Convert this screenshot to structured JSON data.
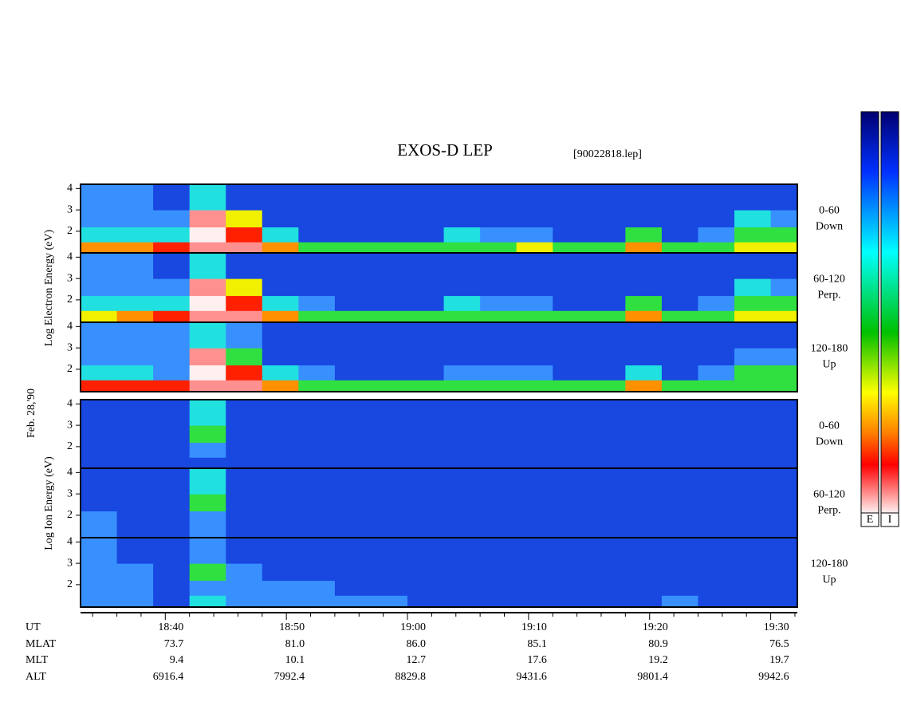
{
  "chart_data": {
    "type": "heatmap",
    "title": "EXOS-D LEP",
    "subtitle": "[90022818.lep]",
    "date": "Feb. 28,'90",
    "xlim": [
      1113,
      1172.2
    ],
    "xticks": [
      {
        "value": 1120,
        "label": "18:40"
      },
      {
        "value": 1130,
        "label": "18:50"
      },
      {
        "value": 1140,
        "label": "19:00"
      },
      {
        "value": 1150,
        "label": "19:10"
      },
      {
        "value": 1160,
        "label": "19:20"
      },
      {
        "value": 1170,
        "label": "19:30"
      }
    ],
    "xminorticks": [
      1114,
      1116,
      1118,
      1122,
      1124,
      1126,
      1128,
      1132,
      1134,
      1136,
      1138,
      1142,
      1144,
      1146,
      1148,
      1152,
      1154,
      1156,
      1158,
      1162,
      1164,
      1166,
      1168,
      1172
    ],
    "ylim": [
      0.95,
      4.2
    ],
    "yticks": [
      2,
      3,
      4
    ],
    "time_bins": [
      1113,
      1116,
      1119,
      1122,
      1125,
      1128,
      1131,
      1134,
      1137,
      1140,
      1143,
      1146,
      1149,
      1152,
      1155,
      1158,
      1161,
      1164,
      1167,
      1170,
      1172.2
    ],
    "energy_bins": [
      0.95,
      1.5,
      2.2,
      3.0,
      4.2
    ],
    "colormap": [
      "#0a1aa0",
      "#1848e0",
      "#3890ff",
      "#20e0e0",
      "#30e040",
      "#f0f000",
      "#ff9000",
      "#ff2000",
      "#ff9090",
      "#fff0f0"
    ],
    "colorbar_labels": [
      "E",
      "I"
    ],
    "groups": [
      {
        "ylabel": "Log Electron Energy (eV)",
        "panels": [
          {
            "label": [
              "0-60",
              "Down"
            ],
            "values": [
              [
                6,
                6,
                7,
                8,
                8,
                6,
                4,
                4,
                4,
                4,
                4,
                4,
                5,
                4,
                4,
                6,
                4,
                4,
                5,
                5
              ],
              [
                3,
                3,
                3,
                9,
                7,
                3,
                1,
                1,
                1,
                1,
                3,
                2,
                2,
                1,
                1,
                4,
                1,
                2,
                4,
                4
              ],
              [
                2,
                2,
                2,
                8,
                5,
                1,
                1,
                1,
                1,
                1,
                1,
                1,
                1,
                1,
                1,
                1,
                1,
                1,
                3,
                2
              ],
              [
                2,
                2,
                1,
                3,
                1,
                1,
                1,
                1,
                1,
                1,
                1,
                1,
                1,
                1,
                1,
                1,
                1,
                1,
                1,
                1
              ]
            ]
          },
          {
            "label": [
              "60-120",
              "Perp."
            ],
            "values": [
              [
                5,
                6,
                7,
                8,
                8,
                6,
                4,
                4,
                4,
                4,
                4,
                4,
                4,
                4,
                4,
                6,
                4,
                4,
                5,
                5
              ],
              [
                3,
                3,
                3,
                9,
                7,
                3,
                2,
                1,
                1,
                1,
                3,
                2,
                2,
                1,
                1,
                4,
                1,
                2,
                4,
                4
              ],
              [
                2,
                2,
                2,
                8,
                5,
                1,
                1,
                1,
                1,
                1,
                1,
                1,
                1,
                1,
                1,
                1,
                1,
                1,
                3,
                2
              ],
              [
                2,
                2,
                1,
                3,
                1,
                1,
                1,
                1,
                1,
                1,
                1,
                1,
                1,
                1,
                1,
                1,
                1,
                1,
                1,
                1
              ]
            ]
          },
          {
            "label": [
              "120-180",
              "Up"
            ],
            "values": [
              [
                7,
                7,
                7,
                8,
                8,
                6,
                4,
                4,
                4,
                4,
                4,
                4,
                4,
                4,
                4,
                6,
                4,
                4,
                4,
                4
              ],
              [
                3,
                3,
                2,
                9,
                7,
                3,
                2,
                1,
                1,
                1,
                2,
                2,
                2,
                1,
                1,
                3,
                1,
                2,
                4,
                4
              ],
              [
                2,
                2,
                2,
                8,
                4,
                1,
                1,
                1,
                1,
                1,
                1,
                1,
                1,
                1,
                1,
                1,
                1,
                1,
                2,
                2
              ],
              [
                2,
                2,
                2,
                3,
                2,
                1,
                1,
                1,
                1,
                1,
                1,
                1,
                1,
                1,
                1,
                1,
                1,
                1,
                1,
                1
              ]
            ]
          }
        ]
      },
      {
        "ylabel": "Log Ion Energy (eV)",
        "panels": [
          {
            "label": [
              "0-60",
              "Down"
            ],
            "values": [
              [
                1,
                1,
                1,
                1,
                1,
                1,
                1,
                1,
                1,
                1,
                1,
                1,
                1,
                1,
                1,
                1,
                1,
                1,
                1,
                1
              ],
              [
                1,
                1,
                1,
                2,
                1,
                1,
                1,
                1,
                1,
                1,
                1,
                1,
                1,
                1,
                1,
                1,
                1,
                1,
                1,
                1
              ],
              [
                1,
                1,
                1,
                4,
                1,
                1,
                1,
                1,
                1,
                1,
                1,
                1,
                1,
                1,
                1,
                1,
                1,
                1,
                1,
                1
              ],
              [
                1,
                1,
                1,
                3,
                1,
                1,
                1,
                1,
                1,
                1,
                1,
                1,
                1,
                1,
                1,
                1,
                1,
                1,
                1,
                1
              ]
            ]
          },
          {
            "label": [
              "60-120",
              "Perp."
            ],
            "values": [
              [
                2,
                1,
                1,
                2,
                1,
                1,
                1,
                1,
                1,
                1,
                1,
                1,
                1,
                1,
                1,
                1,
                1,
                1,
                1,
                1
              ],
              [
                2,
                1,
                1,
                2,
                1,
                1,
                1,
                1,
                1,
                1,
                1,
                1,
                1,
                1,
                1,
                1,
                1,
                1,
                1,
                1
              ],
              [
                1,
                1,
                1,
                4,
                1,
                1,
                1,
                1,
                1,
                1,
                1,
                1,
                1,
                1,
                1,
                1,
                1,
                1,
                1,
                1
              ],
              [
                1,
                1,
                1,
                3,
                1,
                1,
                1,
                1,
                1,
                1,
                1,
                1,
                1,
                1,
                1,
                1,
                1,
                1,
                1,
                1
              ]
            ]
          },
          {
            "label": [
              "120-180",
              "Up"
            ],
            "values": [
              [
                2,
                2,
                1,
                3,
                2,
                2,
                2,
                2,
                2,
                1,
                1,
                1,
                1,
                1,
                1,
                1,
                2,
                1,
                1,
                1
              ],
              [
                2,
                2,
                1,
                2,
                2,
                2,
                2,
                1,
                1,
                1,
                1,
                1,
                1,
                1,
                1,
                1,
                1,
                1,
                1,
                1
              ],
              [
                2,
                2,
                1,
                4,
                2,
                1,
                1,
                1,
                1,
                1,
                1,
                1,
                1,
                1,
                1,
                1,
                1,
                1,
                1,
                1
              ],
              [
                2,
                1,
                1,
                2,
                1,
                1,
                1,
                1,
                1,
                1,
                1,
                1,
                1,
                1,
                1,
                1,
                1,
                1,
                1,
                1
              ]
            ]
          }
        ]
      }
    ],
    "ephemeris": {
      "labels": [
        "UT",
        "MLAT",
        "MLT",
        "ALT"
      ],
      "rows": [
        [
          "73.7",
          "81.0",
          "86.0",
          "85.1",
          "80.9",
          "76.5"
        ],
        [
          "9.4",
          "10.1",
          "12.7",
          "17.6",
          "19.2",
          "19.7"
        ],
        [
          "6916.4",
          "7992.4",
          "8829.8",
          "9431.6",
          "9801.4",
          "9942.6"
        ]
      ]
    }
  }
}
